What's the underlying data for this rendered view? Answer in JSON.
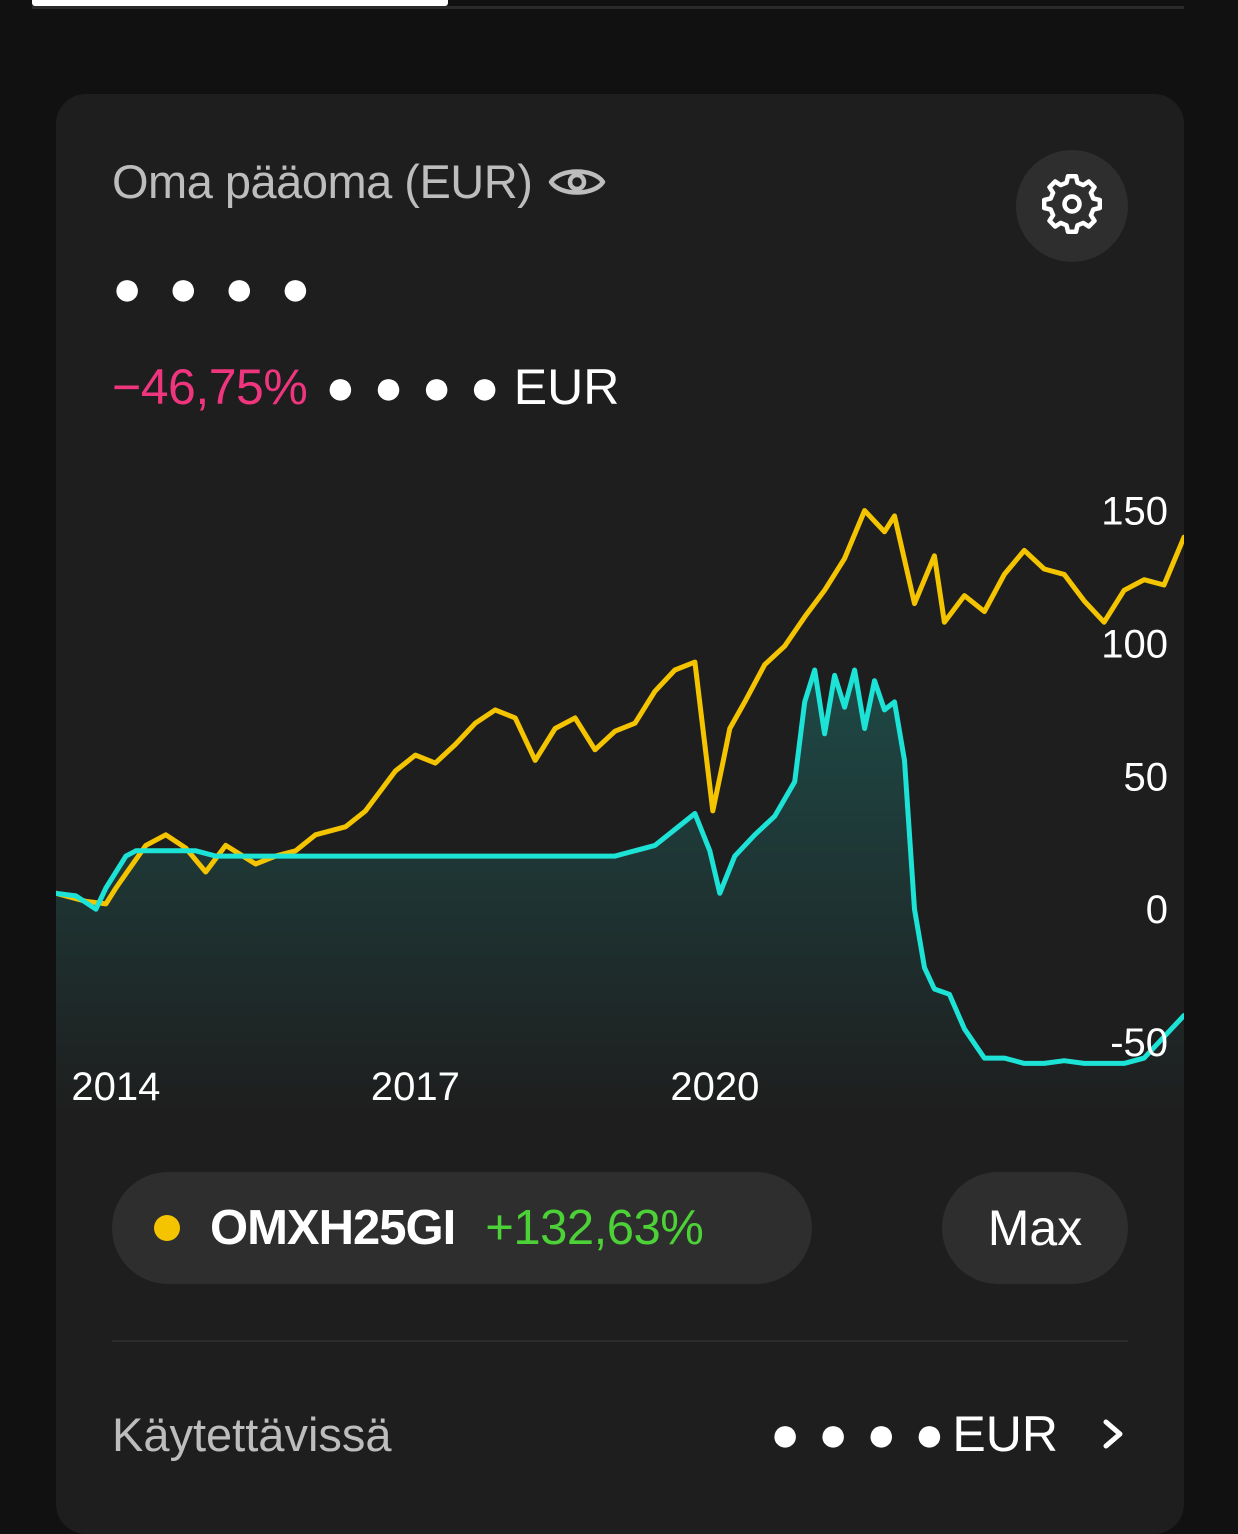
{
  "tabs": {
    "active_index": 0
  },
  "card": {
    "title": "Oma pääoma (EUR)",
    "title_icon": "eye-icon",
    "settings_icon": "gear-icon",
    "hidden_value": "● ● ● ●",
    "change_pct": "−46,75%",
    "change_hidden": "● ● ● ●",
    "change_currency": "EUR"
  },
  "legend": {
    "name": "OMXH25GI",
    "pct": "+132,63%",
    "dot_color": "#f5c400"
  },
  "range_button": {
    "label": "Max"
  },
  "available": {
    "label": "Käytettävissä",
    "hidden": "● ● ● ●",
    "currency": "EUR",
    "chevron_icon": "chevron-right-icon"
  },
  "colors": {
    "benchmark": "#f5c400",
    "portfolio": "#1de2d6",
    "negative": "#f0357f",
    "positive": "#4cd137"
  },
  "chart_data": {
    "type": "line",
    "title": "",
    "xlabel": "",
    "ylabel": "",
    "x_ticks": [
      "2014",
      "2017",
      "2020"
    ],
    "y_ticks": [
      150,
      100,
      50,
      0,
      -50
    ],
    "xlim": [
      2013.4,
      2024.7
    ],
    "ylim": [
      -62,
      160
    ],
    "grid": false,
    "legend": "bottom-left",
    "series": [
      {
        "name": "OMXH25GI",
        "color": "#f5c400",
        "x": [
          2013.4,
          2013.7,
          2013.9,
          2014.0,
          2014.3,
          2014.5,
          2014.7,
          2014.9,
          2015.1,
          2015.4,
          2015.6,
          2015.8,
          2016.0,
          2016.3,
          2016.5,
          2016.8,
          2017.0,
          2017.2,
          2017.4,
          2017.6,
          2017.8,
          2018.0,
          2018.2,
          2018.4,
          2018.6,
          2018.8,
          2019.0,
          2019.2,
          2019.4,
          2019.6,
          2019.8,
          2019.98,
          2020.08,
          2020.15,
          2020.3,
          2020.5,
          2020.7,
          2020.9,
          2021.1,
          2021.3,
          2021.5,
          2021.7,
          2021.8,
          2022.0,
          2022.2,
          2022.3,
          2022.5,
          2022.7,
          2022.9,
          2023.1,
          2023.3,
          2023.5,
          2023.7,
          2023.9,
          2024.1,
          2024.3,
          2024.5,
          2024.7
        ],
        "y": [
          6,
          3,
          2,
          8,
          24,
          28,
          23,
          14,
          24,
          17,
          20,
          22,
          28,
          31,
          37,
          52,
          58,
          55,
          62,
          70,
          75,
          72,
          56,
          68,
          72,
          60,
          67,
          70,
          82,
          90,
          93,
          37,
          55,
          68,
          78,
          92,
          99,
          110,
          120,
          132,
          150,
          142,
          148,
          115,
          133,
          108,
          118,
          112,
          126,
          135,
          128,
          126,
          116,
          108,
          120,
          124,
          122,
          140
        ]
      },
      {
        "name": "",
        "color": "#1de2d6",
        "x": [
          2013.4,
          2013.6,
          2013.8,
          2013.9,
          2014.1,
          2014.2,
          2014.4,
          2014.6,
          2014.8,
          2015.0,
          2016.0,
          2017.0,
          2018.0,
          2019.0,
          2019.4,
          2019.6,
          2019.8,
          2019.95,
          2020.05,
          2020.2,
          2020.4,
          2020.6,
          2020.8,
          2020.9,
          2021.0,
          2021.1,
          2021.2,
          2021.3,
          2021.4,
          2021.5,
          2021.6,
          2021.7,
          2021.8,
          2021.9,
          2022.0,
          2022.1,
          2022.2,
          2022.35,
          2022.5,
          2022.7,
          2022.9,
          2023.1,
          2023.3,
          2023.5,
          2023.7,
          2023.9,
          2024.1,
          2024.3,
          2024.5,
          2024.7
        ],
        "y": [
          6,
          5,
          0,
          8,
          20,
          22,
          22,
          22,
          22,
          20,
          20,
          20,
          20,
          20,
          24,
          30,
          36,
          22,
          6,
          20,
          28,
          35,
          48,
          78,
          90,
          66,
          88,
          76,
          90,
          68,
          86,
          75,
          78,
          56,
          0,
          -22,
          -30,
          -32,
          -45,
          -56,
          -56,
          -58,
          -58,
          -57,
          -58,
          -58,
          -58,
          -56,
          -48,
          -40
        ]
      }
    ]
  }
}
